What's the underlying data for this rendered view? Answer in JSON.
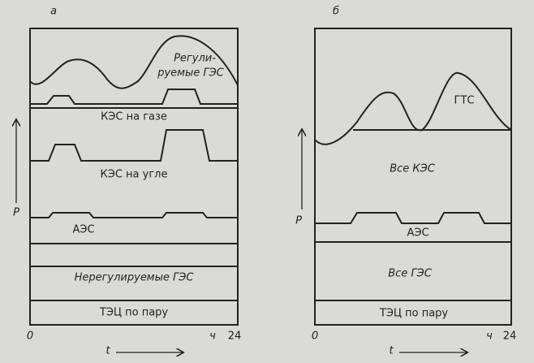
{
  "panels": [
    {
      "label": "а",
      "layers": [
        {
          "lines": [
            "Регули-",
            "руемые ГЭС"
          ]
        },
        {
          "lines": [
            "КЭС на газе"
          ]
        },
        {
          "lines": [
            "КЭС на угле"
          ]
        },
        {
          "lines": [
            "АЭС"
          ]
        },
        {
          "lines": [
            "Нерегулируемые ГЭС"
          ]
        },
        {
          "lines": [
            "ТЭЦ по пару"
          ]
        }
      ],
      "axis": {
        "y": "P",
        "x": "t",
        "origin": "0",
        "unit": "ч",
        "end": "24"
      }
    },
    {
      "label": "б",
      "layers": [
        {
          "lines": [
            "ГТС"
          ]
        },
        {
          "lines": [
            "Все КЭС"
          ]
        },
        {
          "lines": [
            "АЭС"
          ]
        },
        {
          "lines": [
            "Все ГЭС"
          ]
        },
        {
          "lines": [
            "ТЭЦ по пару"
          ]
        }
      ],
      "axis": {
        "y": "P",
        "x": "t",
        "origin": "0",
        "unit": "ч",
        "end": "24"
      }
    }
  ]
}
